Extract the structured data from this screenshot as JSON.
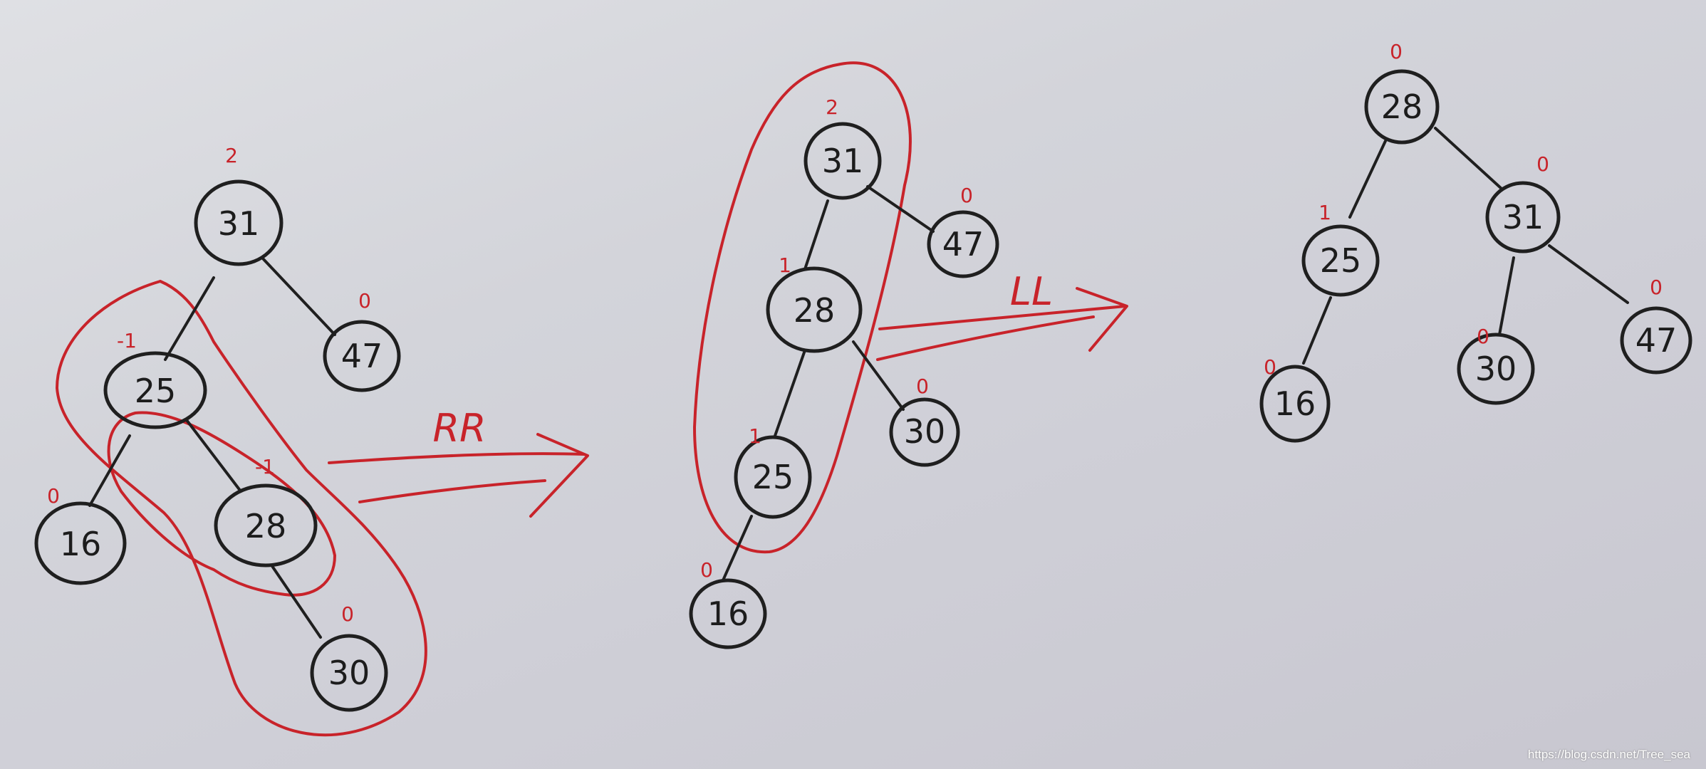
{
  "trees": [
    {
      "nodes": [
        {
          "id": "a31",
          "label": "31",
          "bf": "2"
        },
        {
          "id": "a47",
          "label": "47",
          "bf": "0"
        },
        {
          "id": "a25",
          "label": "25",
          "bf": "-1"
        },
        {
          "id": "a16",
          "label": "16",
          "bf": "0"
        },
        {
          "id": "a28",
          "label": "28",
          "bf": "-1"
        },
        {
          "id": "a30",
          "label": "30",
          "bf": "0"
        }
      ]
    },
    {
      "nodes": [
        {
          "id": "b31",
          "label": "31",
          "bf": "2"
        },
        {
          "id": "b47",
          "label": "47",
          "bf": "0"
        },
        {
          "id": "b28",
          "label": "28",
          "bf": "1"
        },
        {
          "id": "b30",
          "label": "30",
          "bf": "0"
        },
        {
          "id": "b25",
          "label": "25",
          "bf": "1"
        },
        {
          "id": "b16",
          "label": "16",
          "bf": "0"
        }
      ]
    },
    {
      "nodes": [
        {
          "id": "c28",
          "label": "28",
          "bf": "0"
        },
        {
          "id": "c25",
          "label": "25",
          "bf": "1"
        },
        {
          "id": "c31",
          "label": "31",
          "bf": "0"
        },
        {
          "id": "c16",
          "label": "16",
          "bf": "0"
        },
        {
          "id": "c30",
          "label": "30",
          "bf": "0"
        },
        {
          "id": "c47",
          "label": "47",
          "bf": "0"
        }
      ]
    }
  ],
  "rotations": [
    {
      "label": "RR"
    },
    {
      "label": "LL"
    }
  ],
  "watermark": "https://blog.csdn.net/Tree_sea",
  "colors": {
    "ink": "#1f1f1f",
    "annotation": "#c8232a",
    "paper": "#d6d6dc"
  }
}
